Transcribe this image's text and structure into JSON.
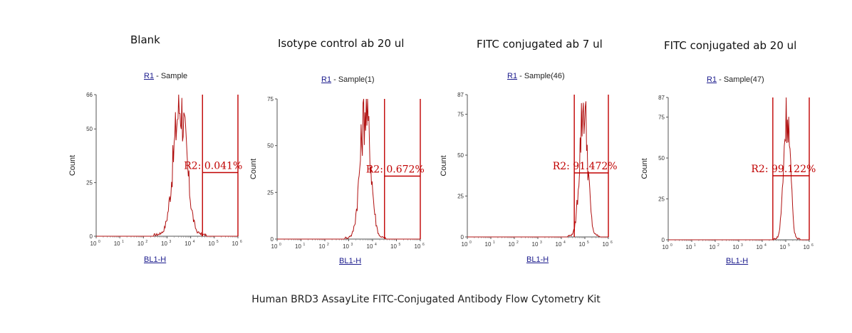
{
  "footer": "Human BRD3 AssayLite FITC-Conjugated Antibody Flow Cytometry Kit",
  "colors": {
    "histogram": "#b01010",
    "gate": "#c00000",
    "axis": "#555555"
  },
  "chart_data": [
    {
      "type": "histogram",
      "title": "Blank",
      "gate_label": "R1",
      "sample": " - Sample",
      "ylabel": "Count",
      "xlabel": "BL1-H",
      "x_scale": "log",
      "xlim_decades": [
        0,
        6
      ],
      "ylim": [
        0,
        66
      ],
      "yticks": [
        0,
        25,
        50,
        66
      ],
      "xtick_labels": [
        "10",
        "10",
        "10",
        "10",
        "10",
        "10",
        "10"
      ],
      "xtick_exponents": [
        "0",
        "1",
        "2",
        "3",
        "4",
        "5",
        "6"
      ],
      "gate_bounds_decades": [
        4.5,
        6
      ],
      "gate_text": "R2: 0.041%",
      "peak": {
        "center_decades": 3.55,
        "width_decades": 0.28,
        "height": 64
      }
    },
    {
      "type": "histogram",
      "title": "Isotype control ab 20 ul",
      "gate_label": "R1",
      "sample": " - Sample(1)",
      "ylabel": "Count",
      "xlabel": "BL1-H",
      "x_scale": "log",
      "xlim_decades": [
        0,
        6
      ],
      "ylim": [
        0,
        75
      ],
      "yticks": [
        0,
        25,
        50,
        75
      ],
      "xtick_labels": [
        "10",
        "10",
        "10",
        "10",
        "10",
        "10",
        "10"
      ],
      "xtick_exponents": [
        "0",
        "1",
        "2",
        "3",
        "4",
        "5",
        "6"
      ],
      "gate_bounds_decades": [
        4.5,
        6
      ],
      "gate_text": "R2: 0.672%",
      "peak": {
        "center_decades": 3.7,
        "width_decades": 0.22,
        "height": 73
      }
    },
    {
      "type": "histogram",
      "title": "FITC conjugated ab 7 ul",
      "gate_label": "R1",
      "sample": " - Sample(46)",
      "ylabel": "Count",
      "xlabel": "BL1-H",
      "x_scale": "log",
      "xlim_decades": [
        0,
        6
      ],
      "ylim": [
        0,
        87
      ],
      "yticks": [
        0,
        25,
        50,
        75,
        87
      ],
      "xtick_labels": [
        "10",
        "10",
        "10",
        "10",
        "10",
        "10",
        "10"
      ],
      "xtick_exponents": [
        "0",
        "1",
        "2",
        "3",
        "4",
        "5",
        "6"
      ],
      "gate_bounds_decades": [
        4.55,
        6
      ],
      "gate_text": "R2: 91.472%",
      "peak": {
        "center_decades": 4.95,
        "width_decades": 0.17,
        "height": 84
      }
    },
    {
      "type": "histogram",
      "title": "FITC conjugated ab 20 ul",
      "gate_label": "R1",
      "sample": " - Sample(47)",
      "ylabel": "Count",
      "xlabel": "BL1-H",
      "x_scale": "log",
      "xlim_decades": [
        0,
        6
      ],
      "ylim": [
        0,
        87
      ],
      "yticks": [
        0,
        25,
        50,
        75,
        87
      ],
      "xtick_labels": [
        "10",
        "10",
        "10",
        "10",
        "10",
        "10",
        "10"
      ],
      "xtick_exponents": [
        "0",
        "1",
        "2",
        "3",
        "4",
        "5",
        "6"
      ],
      "gate_bounds_decades": [
        4.45,
        6
      ],
      "gate_text": "R2: 99.122%",
      "peak": {
        "center_decades": 5.05,
        "width_decades": 0.14,
        "height": 84
      }
    }
  ]
}
